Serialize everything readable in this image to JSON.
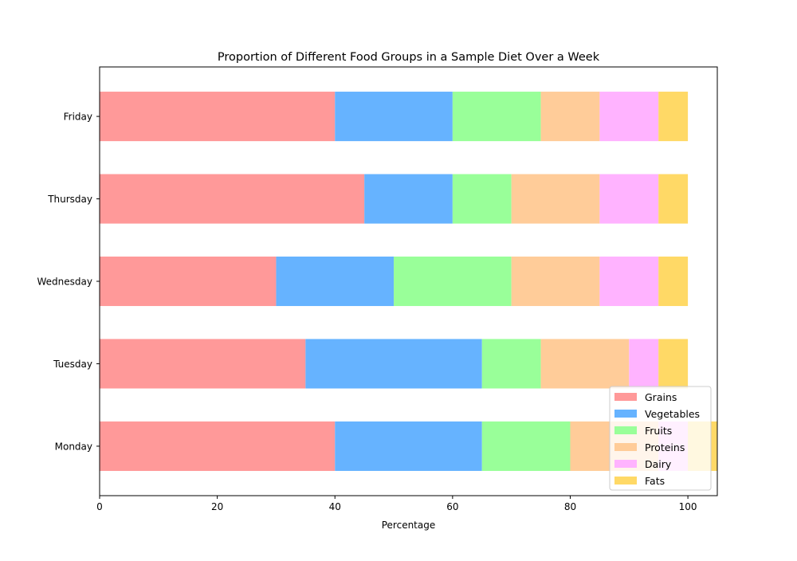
{
  "chart_data": {
    "type": "bar",
    "orientation": "horizontal",
    "stacked": true,
    "title": "Proportion of Different Food Groups in a Sample Diet Over a Week",
    "xlabel": "Percentage",
    "ylabel": "",
    "xlim": [
      0,
      105
    ],
    "xticks": [
      0,
      20,
      40,
      60,
      80,
      100
    ],
    "grid": false,
    "legend_position": "lower-right",
    "categories": [
      "Monday",
      "Tuesday",
      "Wednesday",
      "Thursday",
      "Friday"
    ],
    "series": [
      {
        "name": "Grains",
        "color": "#ff9999",
        "values": [
          40,
          35,
          30,
          45,
          40
        ]
      },
      {
        "name": "Vegetables",
        "color": "#66b3ff",
        "values": [
          25,
          30,
          20,
          15,
          20
        ]
      },
      {
        "name": "Fruits",
        "color": "#99ff99",
        "values": [
          15,
          10,
          20,
          10,
          15
        ]
      },
      {
        "name": "Proteins",
        "color": "#ffcc99",
        "values": [
          15,
          15,
          15,
          15,
          10
        ]
      },
      {
        "name": "Dairy",
        "color": "#ffb3ff",
        "values": [
          5,
          5,
          10,
          10,
          10
        ]
      },
      {
        "name": "Fats",
        "color": "#ffd966",
        "values": [
          5,
          5,
          5,
          5,
          5
        ]
      }
    ]
  }
}
